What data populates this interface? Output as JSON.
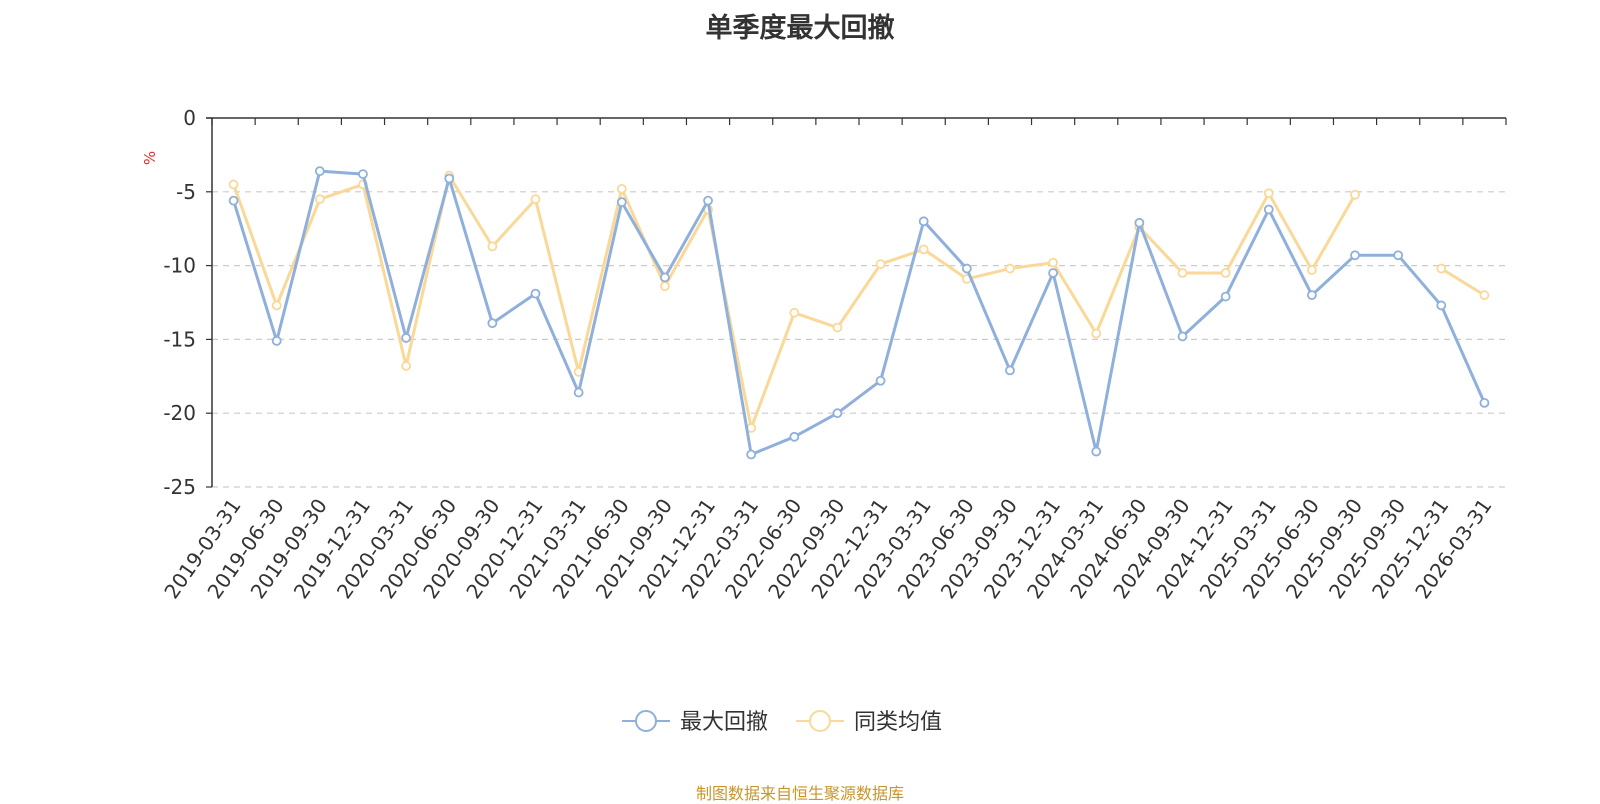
{
  "chart_data": {
    "type": "line",
    "title": "单季度最大回撤",
    "ylabel": "%",
    "ylim": [
      -25,
      0
    ],
    "yticks": [
      0,
      -5,
      -10,
      -15,
      -20,
      -25
    ],
    "grid": true,
    "legend_position": "bottom-center",
    "categories": [
      "2019-03-31",
      "2019-06-30",
      "2019-09-30",
      "2019-12-31",
      "2020-03-31",
      "2020-06-30",
      "2020-09-30",
      "2020-12-31",
      "2021-03-31",
      "2021-06-30",
      "2021-09-30",
      "2021-12-31",
      "2022-03-31",
      "2022-06-30",
      "2022-09-30",
      "2022-12-31",
      "2023-03-31",
      "2023-06-30",
      "2023-09-30",
      "2023-12-31",
      "2024-03-31",
      "2024-06-30",
      "2024-09-30",
      "2024-12-31",
      "2025-03-31",
      "2025-06-30",
      "2025-09-30",
      "2025-09-30",
      "2025-12-31",
      "2026-03-31"
    ],
    "series": [
      {
        "name": "最大回撤",
        "color": "#8fb0dc",
        "values": [
          -5.6,
          -15.1,
          -3.6,
          -3.8,
          -14.9,
          -4.1,
          -13.9,
          -11.9,
          -18.6,
          -5.7,
          -10.8,
          -5.6,
          -22.8,
          -21.6,
          -20.0,
          -17.8,
          -7.0,
          -10.2,
          -17.1,
          -10.5,
          -22.6,
          -7.1,
          -14.8,
          -12.1,
          -6.2,
          -12.0,
          -9.3,
          -9.3,
          -12.7,
          -19.3
        ]
      },
      {
        "name": "同类均值",
        "color": "#fad898",
        "values": [
          -4.5,
          -12.7,
          -5.5,
          -4.5,
          -16.8,
          -3.9,
          -8.7,
          -5.5,
          -17.2,
          -4.8,
          -11.4,
          -6.2,
          -21.0,
          -13.2,
          -14.2,
          -9.9,
          -8.9,
          -10.9,
          -10.2,
          -9.8,
          -14.6,
          -7.4,
          -10.5,
          -10.5,
          -5.1,
          -10.3,
          -5.2,
          null,
          -10.2,
          -12.0
        ]
      }
    ]
  },
  "source_note": "制图数据来自恒生聚源数据库"
}
